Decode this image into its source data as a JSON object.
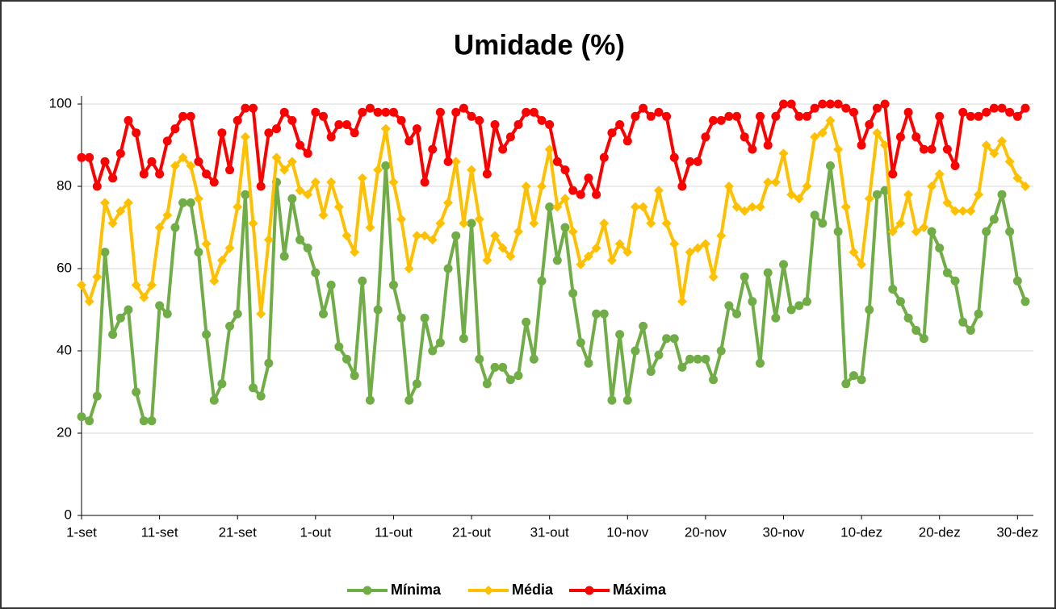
{
  "chart_data": {
    "type": "line",
    "title": "Umidade (%)",
    "categories": [
      "1-set",
      null,
      null,
      null,
      null,
      null,
      null,
      null,
      null,
      null,
      "11-set",
      null,
      null,
      null,
      null,
      null,
      null,
      null,
      null,
      null,
      "21-set",
      null,
      null,
      null,
      null,
      null,
      null,
      null,
      null,
      null,
      "1-out",
      null,
      null,
      null,
      null,
      null,
      null,
      null,
      null,
      null,
      "11-out",
      null,
      null,
      null,
      null,
      null,
      null,
      null,
      null,
      null,
      "21-out",
      null,
      null,
      null,
      null,
      null,
      null,
      null,
      null,
      null,
      "31-out",
      null,
      null,
      null,
      null,
      null,
      null,
      null,
      null,
      null,
      "10-nov",
      null,
      null,
      null,
      null,
      null,
      null,
      null,
      null,
      null,
      "20-nov",
      null,
      null,
      null,
      null,
      null,
      null,
      null,
      null,
      null,
      "30-nov",
      null,
      null,
      null,
      null,
      null,
      null,
      null,
      null,
      null,
      "10-dez",
      null,
      null,
      null,
      null,
      null,
      null,
      null,
      null,
      null,
      "20-dez",
      null,
      null,
      null,
      null,
      null,
      null,
      null,
      null,
      null,
      "30-dez",
      null
    ],
    "series": [
      {
        "name": "Mínima",
        "color": "#70ad47",
        "marker": "circle",
        "values": [
          24,
          23,
          29,
          64,
          44,
          48,
          50,
          30,
          23,
          23,
          51,
          49,
          70,
          76,
          76,
          64,
          44,
          28,
          32,
          46,
          49,
          78,
          31,
          29,
          37,
          81,
          63,
          77,
          67,
          65,
          59,
          49,
          56,
          41,
          38,
          34,
          57,
          28,
          50,
          85,
          56,
          48,
          28,
          32,
          48,
          40,
          42,
          60,
          68,
          43,
          71,
          38,
          32,
          36,
          36,
          33,
          34,
          47,
          38,
          57,
          75,
          62,
          70,
          54,
          42,
          37,
          49,
          49,
          28,
          44,
          28,
          40,
          46,
          35,
          39,
          43,
          43,
          36,
          38,
          38,
          38,
          33,
          40,
          51,
          49,
          58,
          52,
          37,
          59,
          48,
          61,
          50,
          51,
          52,
          73,
          71,
          85,
          69,
          32,
          34,
          33,
          50,
          78,
          79,
          55,
          52,
          48,
          45,
          43,
          69,
          65,
          59,
          57,
          47,
          45,
          49,
          69,
          72,
          78,
          69,
          57,
          52
        ]
      },
      {
        "name": "Média",
        "color": "#ffc000",
        "marker": "diamond",
        "values": [
          56,
          52,
          58,
          76,
          71,
          74,
          76,
          56,
          53,
          56,
          70,
          73,
          85,
          87,
          85,
          77,
          66,
          57,
          62,
          65,
          75,
          92,
          71,
          49,
          67,
          87,
          84,
          86,
          79,
          78,
          81,
          73,
          81,
          75,
          68,
          64,
          82,
          70,
          84,
          94,
          81,
          72,
          60,
          68,
          68,
          67,
          71,
          76,
          86,
          71,
          84,
          72,
          62,
          68,
          65,
          63,
          69,
          80,
          71,
          80,
          89,
          75,
          77,
          69,
          61,
          63,
          65,
          71,
          62,
          66,
          64,
          75,
          75,
          71,
          79,
          71,
          66,
          52,
          64,
          65,
          66,
          58,
          68,
          80,
          75,
          74,
          75,
          75,
          81,
          81,
          88,
          78,
          77,
          80,
          92,
          93,
          96,
          89,
          75,
          64,
          61,
          77,
          93,
          90,
          69,
          71,
          78,
          69,
          70,
          80,
          83,
          76,
          74,
          74,
          74,
          78,
          90,
          88,
          91,
          86,
          82,
          80
        ]
      },
      {
        "name": "Máxima",
        "color": "#ff0000",
        "marker": "circle",
        "values": [
          87,
          87,
          80,
          86,
          82,
          88,
          96,
          93,
          83,
          86,
          83,
          91,
          94,
          97,
          97,
          86,
          83,
          81,
          93,
          84,
          96,
          99,
          99,
          80,
          93,
          94,
          98,
          96,
          90,
          88,
          98,
          97,
          92,
          95,
          95,
          93,
          98,
          99,
          98,
          98,
          98,
          96,
          91,
          94,
          81,
          89,
          98,
          86,
          98,
          99,
          97,
          96,
          83,
          95,
          89,
          92,
          95,
          98,
          98,
          96,
          95,
          86,
          84,
          79,
          78,
          82,
          78,
          87,
          93,
          95,
          91,
          97,
          99,
          97,
          98,
          97,
          87,
          80,
          86,
          86,
          92,
          96,
          96,
          97,
          97,
          92,
          89,
          97,
          90,
          97,
          100,
          100,
          97,
          97,
          99,
          100,
          100,
          100,
          99,
          98,
          90,
          95,
          99,
          100,
          83,
          92,
          98,
          92,
          89,
          89,
          97,
          89,
          85,
          98,
          97,
          97,
          98,
          99,
          99,
          98,
          97,
          99
        ]
      }
    ],
    "ylim": [
      0,
      100
    ],
    "yticks": [
      0,
      20,
      40,
      60,
      80,
      100
    ],
    "grid": true,
    "legend": "bottom"
  }
}
